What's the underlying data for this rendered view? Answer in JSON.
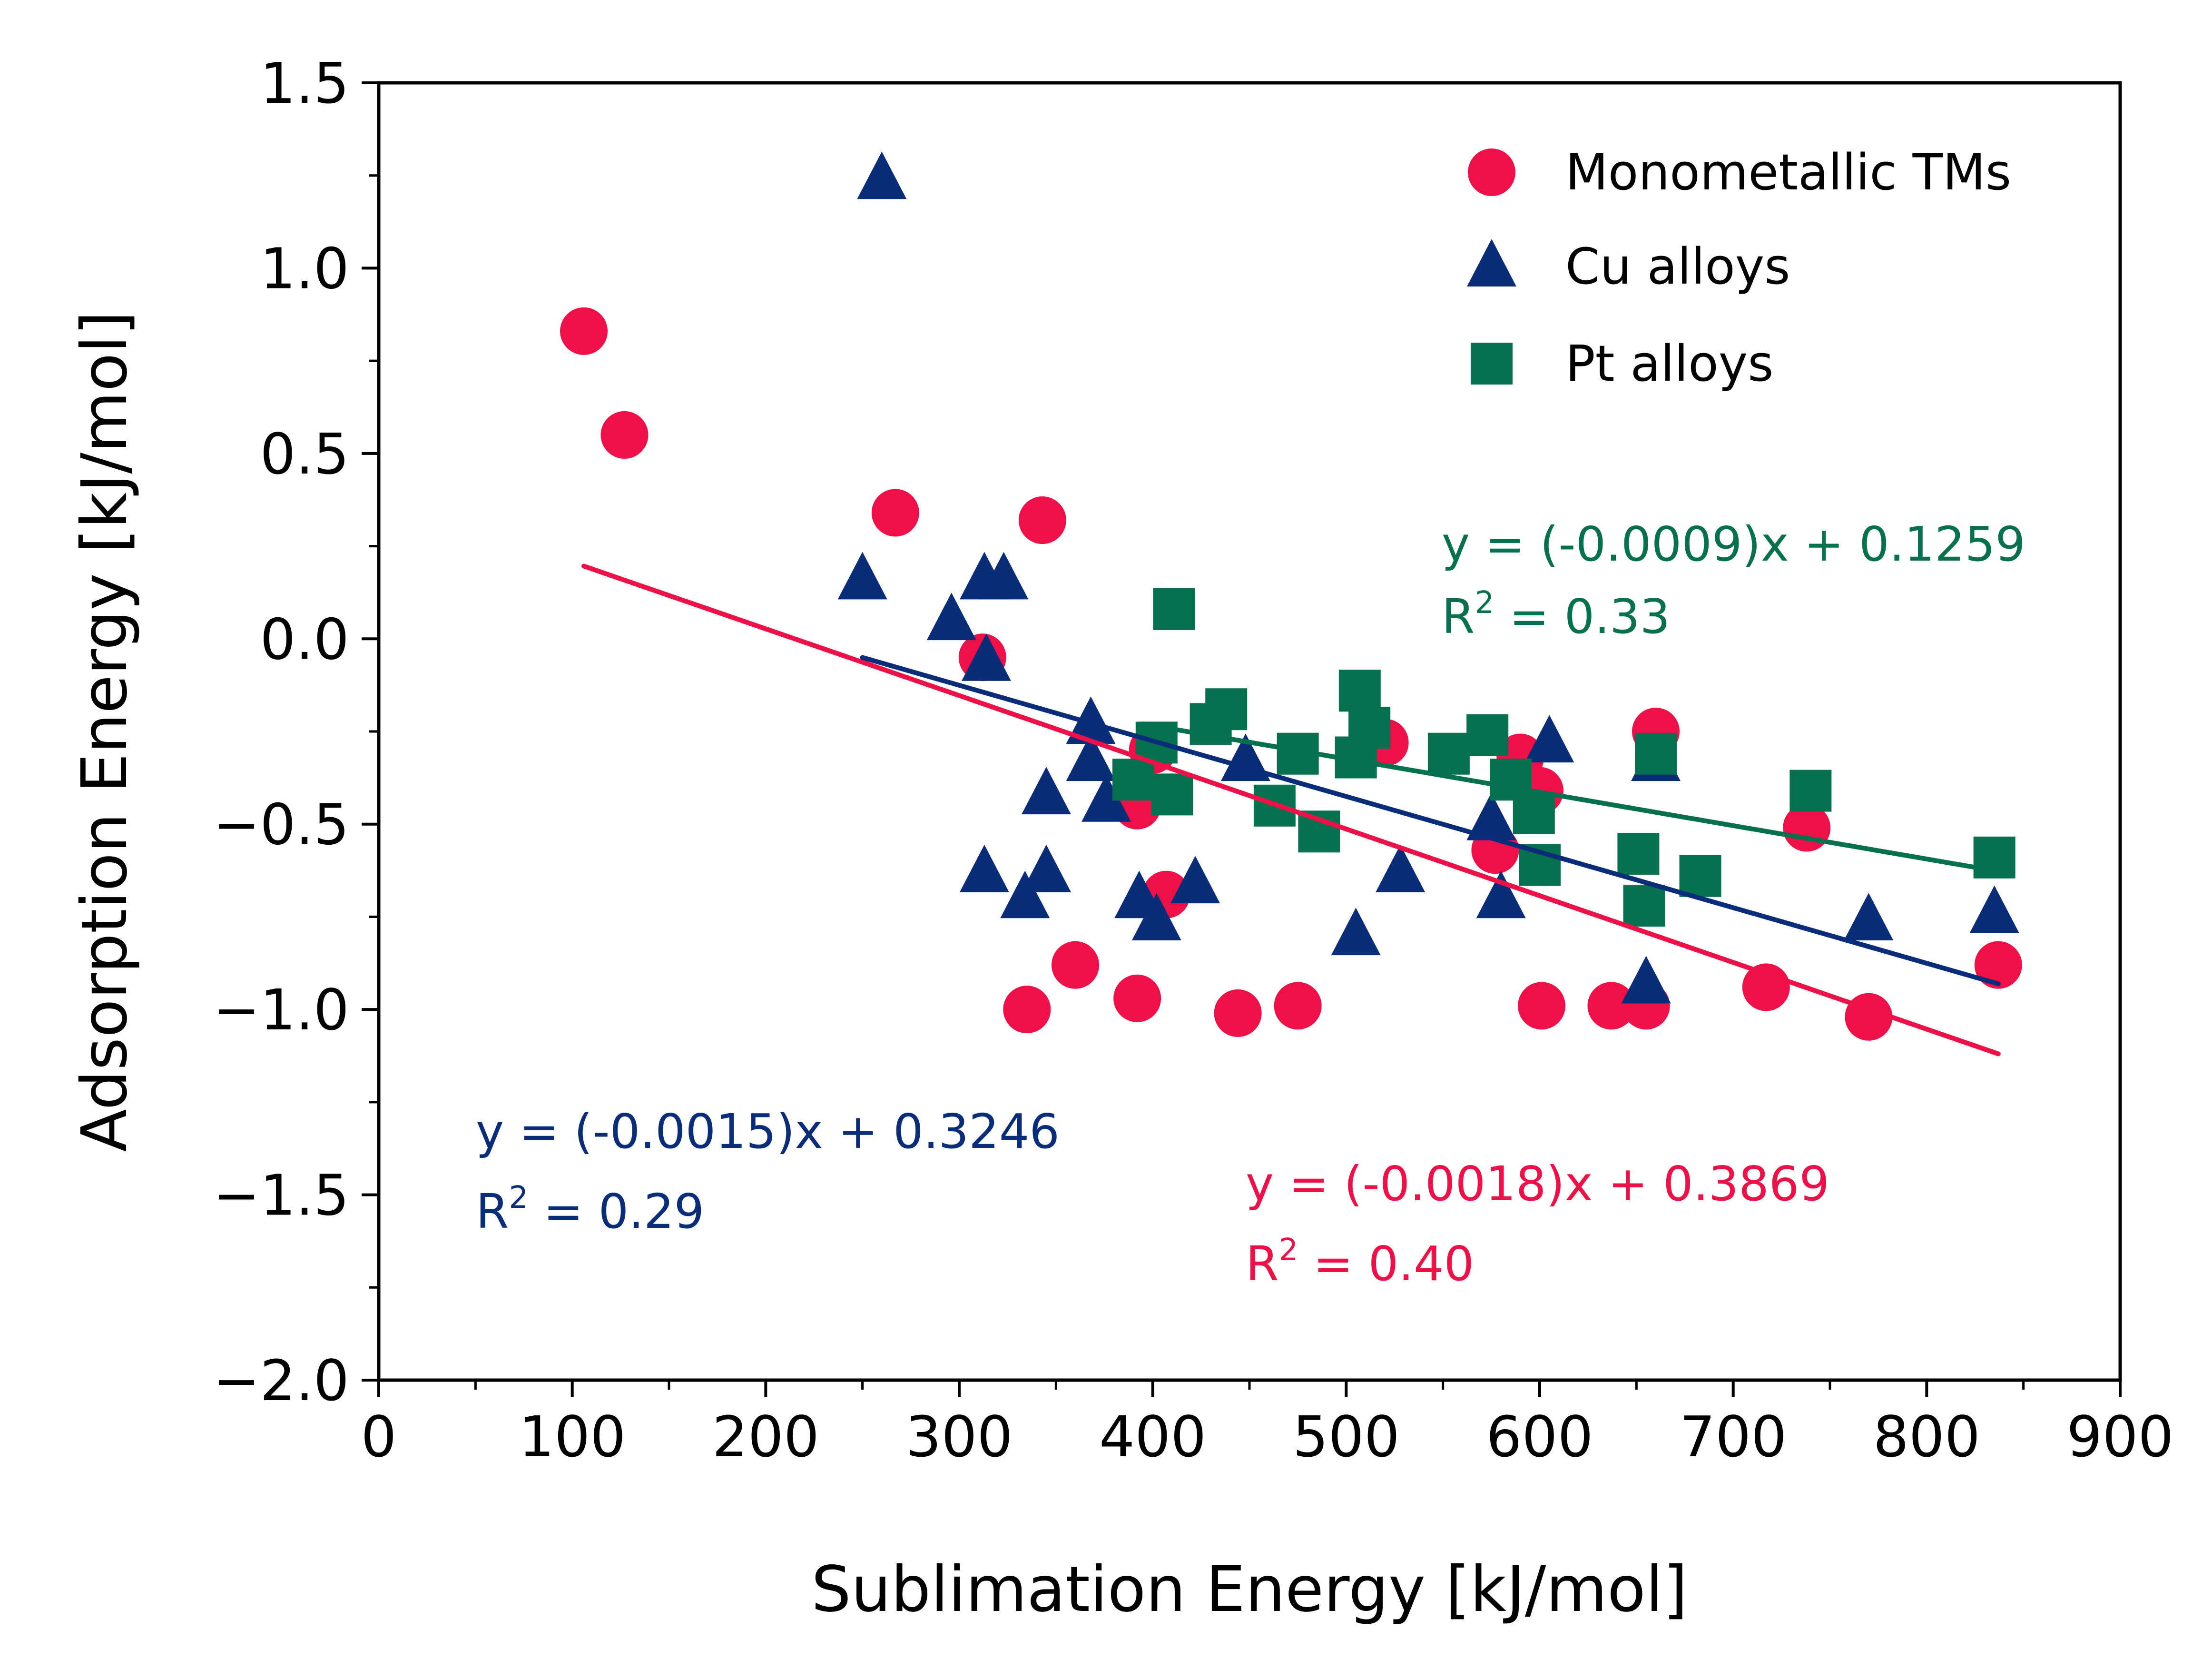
{
  "chart_data": {
    "type": "scatter",
    "xlabel": "Sublimation Energy [kJ/mol]",
    "ylabel": "Adsorption Energy [kJ/mol]",
    "xlim": [
      0,
      900
    ],
    "ylim": [
      -2.0,
      1.5
    ],
    "x_ticks": [
      0,
      100,
      200,
      300,
      400,
      500,
      600,
      700,
      800,
      900
    ],
    "x_tick_labels": [
      "0",
      "100",
      "200",
      "300",
      "400",
      "500",
      "600",
      "700",
      "800",
      "900"
    ],
    "y_ticks": [
      -2.0,
      -1.5,
      -1.0,
      -0.5,
      0.0,
      0.5,
      1.0,
      1.5
    ],
    "y_tick_labels": [
      "−2.0",
      "−1.5",
      "−1.0",
      "−0.5",
      "0.0",
      "0.5",
      "1.0",
      "1.5"
    ],
    "grid": false,
    "legend_position": "top-right",
    "series": [
      {
        "name": "Monometallic TMs",
        "marker": "circle",
        "color": "#EE1148",
        "points": [
          [
            106,
            0.83
          ],
          [
            127,
            0.55
          ],
          [
            267,
            0.34
          ],
          [
            343,
            0.32
          ],
          [
            312,
            -0.05
          ],
          [
            335,
            -1.0
          ],
          [
            360,
            -0.88
          ],
          [
            392,
            -0.97
          ],
          [
            392,
            -0.45
          ],
          [
            400,
            -0.3
          ],
          [
            407,
            -0.69
          ],
          [
            444,
            -1.01
          ],
          [
            475,
            -0.99
          ],
          [
            520,
            -0.28
          ],
          [
            577,
            -0.57
          ],
          [
            590,
            -0.32
          ],
          [
            600,
            -0.41
          ],
          [
            601,
            -0.99
          ],
          [
            637,
            -0.99
          ],
          [
            655,
            -0.99
          ],
          [
            660,
            -0.25
          ],
          [
            717,
            -0.94
          ],
          [
            738,
            -0.51
          ],
          [
            770,
            -1.02
          ],
          [
            837,
            -0.88
          ]
        ],
        "fit": {
          "slope": -0.0018,
          "intercept": 0.3869,
          "x_range": [
            106,
            837
          ],
          "equation": "y = (-0.0018)x + 0.3869",
          "r2_prefix": "R",
          "r2_sup": "2",
          "r2_value": " = 0.40"
        }
      },
      {
        "name": "Cu alloys",
        "marker": "triangle",
        "color": "#0A2D7A",
        "points": [
          [
            260,
            1.24
          ],
          [
            250,
            0.16
          ],
          [
            296,
            0.05
          ],
          [
            313,
            0.16
          ],
          [
            323,
            0.16
          ],
          [
            314,
            -0.06
          ],
          [
            313,
            -0.63
          ],
          [
            334,
            -0.7
          ],
          [
            345,
            -0.42
          ],
          [
            345,
            -0.63
          ],
          [
            368,
            -0.23
          ],
          [
            368,
            -0.33
          ],
          [
            376,
            -0.44
          ],
          [
            393,
            -0.7
          ],
          [
            402,
            -0.76
          ],
          [
            422,
            -0.66
          ],
          [
            448,
            -0.33
          ],
          [
            505,
            -0.8
          ],
          [
            528,
            -0.63
          ],
          [
            575,
            -0.49
          ],
          [
            580,
            -0.7
          ],
          [
            605,
            -0.28
          ],
          [
            655,
            -0.93
          ],
          [
            660,
            -0.33
          ],
          [
            770,
            -0.76
          ],
          [
            835,
            -0.74
          ]
        ],
        "fit": {
          "slope": -0.0015,
          "intercept": 0.3246,
          "x_range": [
            250,
            837
          ],
          "equation": "y = (-0.0015)x + 0.3246",
          "r2_prefix": "R",
          "r2_sup": "2",
          "r2_value": " = 0.29"
        }
      },
      {
        "name": "Pt alloys",
        "marker": "square",
        "color": "#07704F",
        "points": [
          [
            411,
            0.08
          ],
          [
            390,
            -0.38
          ],
          [
            402,
            -0.28
          ],
          [
            410,
            -0.42
          ],
          [
            430,
            -0.23
          ],
          [
            438,
            -0.19
          ],
          [
            463,
            -0.45
          ],
          [
            475,
            -0.31
          ],
          [
            486,
            -0.52
          ],
          [
            507,
            -0.14
          ],
          [
            505,
            -0.32
          ],
          [
            512,
            -0.24
          ],
          [
            553,
            -0.31
          ],
          [
            573,
            -0.26
          ],
          [
            585,
            -0.38
          ],
          [
            597,
            -0.47
          ],
          [
            600,
            -0.61
          ],
          [
            651,
            -0.58
          ],
          [
            654,
            -0.72
          ],
          [
            660,
            -0.31
          ],
          [
            683,
            -0.64
          ],
          [
            740,
            -0.41
          ],
          [
            835,
            -0.59
          ]
        ],
        "fit": {
          "slope": -0.0009,
          "intercept": 0.1259,
          "x_range": [
            395,
            837
          ],
          "equation": "y = (-0.0009)x + 0.1259",
          "r2_prefix": "R",
          "r2_sup": "2",
          "r2_value": " = 0.33"
        }
      }
    ]
  }
}
